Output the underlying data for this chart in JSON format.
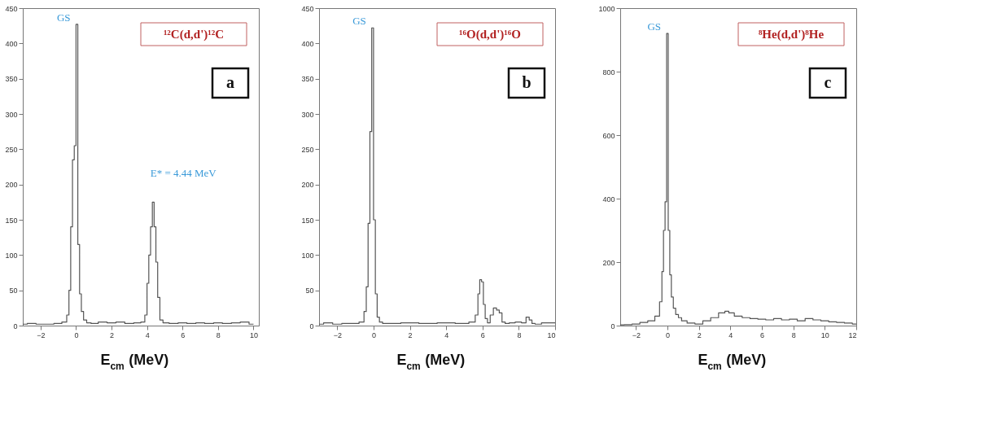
{
  "chart_data": [
    {
      "type": "step",
      "xlabel": "E$_{cm}$ (MeV)",
      "xlim": [
        -3,
        10.3
      ],
      "xticks": [
        -2,
        0,
        2,
        4,
        6,
        8,
        10
      ],
      "ylim": [
        0,
        450
      ],
      "yticks": [
        0,
        50,
        100,
        150,
        200,
        250,
        300,
        350,
        400,
        450
      ],
      "grid": false,
      "marker": "none",
      "x": [
        -3,
        -2.5,
        -2,
        -1.5,
        -1,
        -0.6,
        -0.45,
        -0.35,
        -0.25,
        -0.15,
        -0.05,
        0.05,
        0.15,
        0.25,
        0.35,
        0.5,
        0.7,
        1,
        1.5,
        2,
        2.5,
        3,
        3.5,
        3.8,
        3.95,
        4.05,
        4.15,
        4.25,
        4.35,
        4.45,
        4.55,
        4.65,
        4.8,
        5,
        5.5,
        6,
        6.5,
        7,
        7.5,
        8,
        8.5,
        9,
        9.5,
        10
      ],
      "series": [
        {
          "color": "#555555",
          "values": [
            2,
            3,
            2,
            2,
            3,
            5,
            15,
            50,
            140,
            235,
            255,
            427,
            115,
            45,
            20,
            8,
            4,
            3,
            5,
            4,
            5,
            3,
            4,
            5,
            15,
            60,
            100,
            140,
            175,
            140,
            90,
            40,
            8,
            4,
            3,
            4,
            3,
            4,
            3,
            4,
            3,
            4,
            5,
            2
          ]
        }
      ],
      "annotations": [
        {
          "text": "GS",
          "x": 0.05,
          "y": 427
        },
        "¹²C(d,d')¹²C",
        "a",
        "E* = 4.44 MeV"
      ]
    },
    {
      "type": "step",
      "xlabel": "E$_{cm}$ (MeV)",
      "xlim": [
        -3,
        10
      ],
      "xticks": [
        -2,
        0,
        2,
        4,
        6,
        8,
        10
      ],
      "ylim": [
        0,
        450
      ],
      "yticks": [
        0,
        50,
        100,
        150,
        200,
        250,
        300,
        350,
        400,
        450
      ],
      "grid": false,
      "marker": "none",
      "x": [
        -3,
        -2.5,
        -2,
        -1.5,
        -1,
        -0.6,
        -0.45,
        -0.35,
        -0.25,
        -0.15,
        -0.05,
        0.05,
        0.15,
        0.25,
        0.4,
        0.6,
        1,
        2,
        3,
        4,
        5,
        5.5,
        5.7,
        5.8,
        5.9,
        6.0,
        6.1,
        6.2,
        6.35,
        6.5,
        6.7,
        6.85,
        7.0,
        7.15,
        7.35,
        7.6,
        8,
        8.3,
        8.5,
        8.65,
        8.8,
        9,
        9.5,
        10
      ],
      "series": [
        {
          "color": "#555555",
          "values": [
            2,
            4,
            2,
            3,
            3,
            5,
            20,
            55,
            145,
            275,
            422,
            150,
            45,
            12,
            5,
            3,
            3,
            4,
            3,
            4,
            3,
            5,
            15,
            45,
            65,
            62,
            30,
            10,
            4,
            15,
            25,
            22,
            18,
            5,
            3,
            4,
            5,
            4,
            12,
            8,
            3,
            2,
            4,
            4
          ]
        }
      ],
      "annotations": [
        {
          "text": "GS",
          "x": -0.05,
          "y": 422
        },
        "¹⁶O(d,d')¹⁶O",
        "b"
      ]
    },
    {
      "type": "step",
      "xlabel": "E$_{cm}$ (MeV)",
      "xlim": [
        -3,
        12
      ],
      "xticks": [
        -2,
        0,
        2,
        4,
        6,
        8,
        10,
        12
      ],
      "ylim": [
        0,
        1000
      ],
      "yticks": [
        0,
        200,
        400,
        600,
        800,
        {
          "value": 1000,
          "label": "1000"
        }
      ],
      "grid": false,
      "marker": "none",
      "x": [
        -3,
        -2.5,
        -2,
        -1.5,
        -1,
        -0.6,
        -0.4,
        -0.3,
        -0.2,
        -0.1,
        0,
        0.1,
        0.2,
        0.3,
        0.45,
        0.6,
        0.8,
        1,
        1.5,
        2,
        2.5,
        3,
        3.5,
        3.8,
        4,
        4.5,
        5,
        5.5,
        6,
        6.5,
        7,
        7.5,
        8,
        8.5,
        9,
        9.5,
        10,
        10.5,
        11,
        11.5,
        12
      ],
      "series": [
        {
          "color": "#555555",
          "values": [
            2,
            3,
            5,
            10,
            15,
            30,
            75,
            170,
            300,
            390,
            920,
            300,
            160,
            90,
            55,
            35,
            25,
            15,
            8,
            5,
            15,
            25,
            40,
            45,
            40,
            30,
            25,
            22,
            20,
            18,
            22,
            18,
            20,
            15,
            22,
            18,
            15,
            12,
            10,
            8,
            5
          ]
        }
      ],
      "annotations": [
        {
          "text": "GS",
          "x": 0,
          "y": 920
        },
        "⁸He(d,d')⁸He",
        "c"
      ]
    }
  ]
}
